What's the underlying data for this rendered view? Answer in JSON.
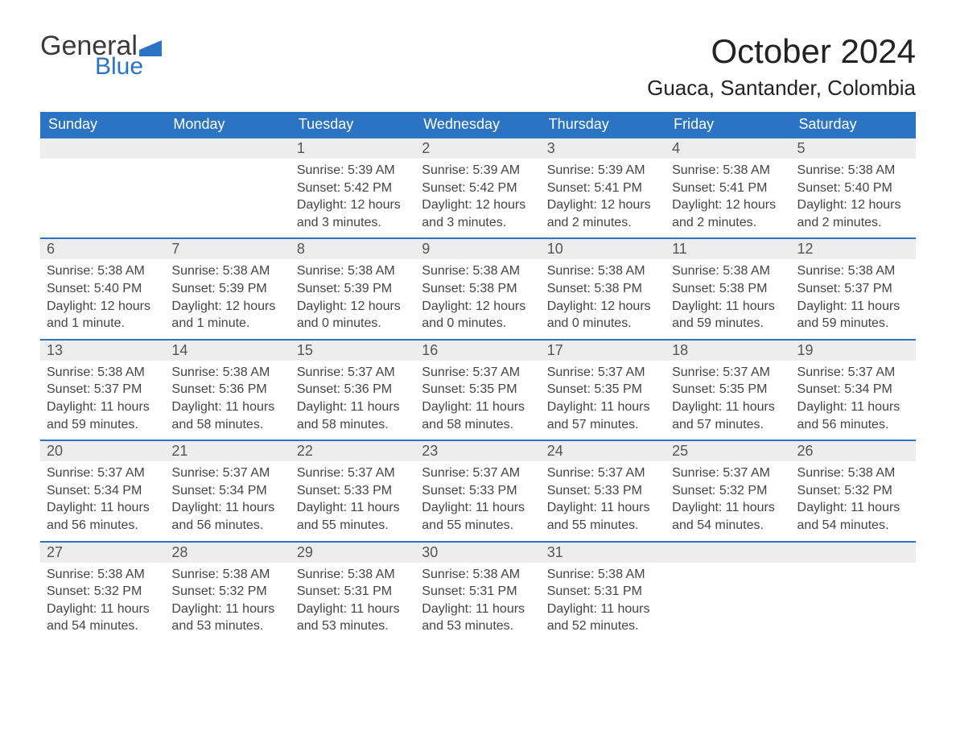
{
  "logo": {
    "word1": "General",
    "word2": "Blue"
  },
  "title": "October 2024",
  "location": "Guaca, Santander, Colombia",
  "colors": {
    "brand_blue": "#2a74c3",
    "header_text": "#ffffff",
    "daynum_bg": "#ededed",
    "body_text": "#444444",
    "page_bg": "#ffffff"
  },
  "typography": {
    "title_fontsize": 42,
    "location_fontsize": 26,
    "weekday_fontsize": 18,
    "daynum_fontsize": 18,
    "body_fontsize": 16
  },
  "weekdays": [
    "Sunday",
    "Monday",
    "Tuesday",
    "Wednesday",
    "Thursday",
    "Friday",
    "Saturday"
  ],
  "weeks": [
    [
      null,
      null,
      {
        "day": "1",
        "sunrise": "Sunrise: 5:39 AM",
        "sunset": "Sunset: 5:42 PM",
        "daylight": "Daylight: 12 hours and 3 minutes."
      },
      {
        "day": "2",
        "sunrise": "Sunrise: 5:39 AM",
        "sunset": "Sunset: 5:42 PM",
        "daylight": "Daylight: 12 hours and 3 minutes."
      },
      {
        "day": "3",
        "sunrise": "Sunrise: 5:39 AM",
        "sunset": "Sunset: 5:41 PM",
        "daylight": "Daylight: 12 hours and 2 minutes."
      },
      {
        "day": "4",
        "sunrise": "Sunrise: 5:38 AM",
        "sunset": "Sunset: 5:41 PM",
        "daylight": "Daylight: 12 hours and 2 minutes."
      },
      {
        "day": "5",
        "sunrise": "Sunrise: 5:38 AM",
        "sunset": "Sunset: 5:40 PM",
        "daylight": "Daylight: 12 hours and 2 minutes."
      }
    ],
    [
      {
        "day": "6",
        "sunrise": "Sunrise: 5:38 AM",
        "sunset": "Sunset: 5:40 PM",
        "daylight": "Daylight: 12 hours and 1 minute."
      },
      {
        "day": "7",
        "sunrise": "Sunrise: 5:38 AM",
        "sunset": "Sunset: 5:39 PM",
        "daylight": "Daylight: 12 hours and 1 minute."
      },
      {
        "day": "8",
        "sunrise": "Sunrise: 5:38 AM",
        "sunset": "Sunset: 5:39 PM",
        "daylight": "Daylight: 12 hours and 0 minutes."
      },
      {
        "day": "9",
        "sunrise": "Sunrise: 5:38 AM",
        "sunset": "Sunset: 5:38 PM",
        "daylight": "Daylight: 12 hours and 0 minutes."
      },
      {
        "day": "10",
        "sunrise": "Sunrise: 5:38 AM",
        "sunset": "Sunset: 5:38 PM",
        "daylight": "Daylight: 12 hours and 0 minutes."
      },
      {
        "day": "11",
        "sunrise": "Sunrise: 5:38 AM",
        "sunset": "Sunset: 5:38 PM",
        "daylight": "Daylight: 11 hours and 59 minutes."
      },
      {
        "day": "12",
        "sunrise": "Sunrise: 5:38 AM",
        "sunset": "Sunset: 5:37 PM",
        "daylight": "Daylight: 11 hours and 59 minutes."
      }
    ],
    [
      {
        "day": "13",
        "sunrise": "Sunrise: 5:38 AM",
        "sunset": "Sunset: 5:37 PM",
        "daylight": "Daylight: 11 hours and 59 minutes."
      },
      {
        "day": "14",
        "sunrise": "Sunrise: 5:38 AM",
        "sunset": "Sunset: 5:36 PM",
        "daylight": "Daylight: 11 hours and 58 minutes."
      },
      {
        "day": "15",
        "sunrise": "Sunrise: 5:37 AM",
        "sunset": "Sunset: 5:36 PM",
        "daylight": "Daylight: 11 hours and 58 minutes."
      },
      {
        "day": "16",
        "sunrise": "Sunrise: 5:37 AM",
        "sunset": "Sunset: 5:35 PM",
        "daylight": "Daylight: 11 hours and 58 minutes."
      },
      {
        "day": "17",
        "sunrise": "Sunrise: 5:37 AM",
        "sunset": "Sunset: 5:35 PM",
        "daylight": "Daylight: 11 hours and 57 minutes."
      },
      {
        "day": "18",
        "sunrise": "Sunrise: 5:37 AM",
        "sunset": "Sunset: 5:35 PM",
        "daylight": "Daylight: 11 hours and 57 minutes."
      },
      {
        "day": "19",
        "sunrise": "Sunrise: 5:37 AM",
        "sunset": "Sunset: 5:34 PM",
        "daylight": "Daylight: 11 hours and 56 minutes."
      }
    ],
    [
      {
        "day": "20",
        "sunrise": "Sunrise: 5:37 AM",
        "sunset": "Sunset: 5:34 PM",
        "daylight": "Daylight: 11 hours and 56 minutes."
      },
      {
        "day": "21",
        "sunrise": "Sunrise: 5:37 AM",
        "sunset": "Sunset: 5:34 PM",
        "daylight": "Daylight: 11 hours and 56 minutes."
      },
      {
        "day": "22",
        "sunrise": "Sunrise: 5:37 AM",
        "sunset": "Sunset: 5:33 PM",
        "daylight": "Daylight: 11 hours and 55 minutes."
      },
      {
        "day": "23",
        "sunrise": "Sunrise: 5:37 AM",
        "sunset": "Sunset: 5:33 PM",
        "daylight": "Daylight: 11 hours and 55 minutes."
      },
      {
        "day": "24",
        "sunrise": "Sunrise: 5:37 AM",
        "sunset": "Sunset: 5:33 PM",
        "daylight": "Daylight: 11 hours and 55 minutes."
      },
      {
        "day": "25",
        "sunrise": "Sunrise: 5:37 AM",
        "sunset": "Sunset: 5:32 PM",
        "daylight": "Daylight: 11 hours and 54 minutes."
      },
      {
        "day": "26",
        "sunrise": "Sunrise: 5:38 AM",
        "sunset": "Sunset: 5:32 PM",
        "daylight": "Daylight: 11 hours and 54 minutes."
      }
    ],
    [
      {
        "day": "27",
        "sunrise": "Sunrise: 5:38 AM",
        "sunset": "Sunset: 5:32 PM",
        "daylight": "Daylight: 11 hours and 54 minutes."
      },
      {
        "day": "28",
        "sunrise": "Sunrise: 5:38 AM",
        "sunset": "Sunset: 5:32 PM",
        "daylight": "Daylight: 11 hours and 53 minutes."
      },
      {
        "day": "29",
        "sunrise": "Sunrise: 5:38 AM",
        "sunset": "Sunset: 5:31 PM",
        "daylight": "Daylight: 11 hours and 53 minutes."
      },
      {
        "day": "30",
        "sunrise": "Sunrise: 5:38 AM",
        "sunset": "Sunset: 5:31 PM",
        "daylight": "Daylight: 11 hours and 53 minutes."
      },
      {
        "day": "31",
        "sunrise": "Sunrise: 5:38 AM",
        "sunset": "Sunset: 5:31 PM",
        "daylight": "Daylight: 11 hours and 52 minutes."
      },
      null,
      null
    ]
  ]
}
